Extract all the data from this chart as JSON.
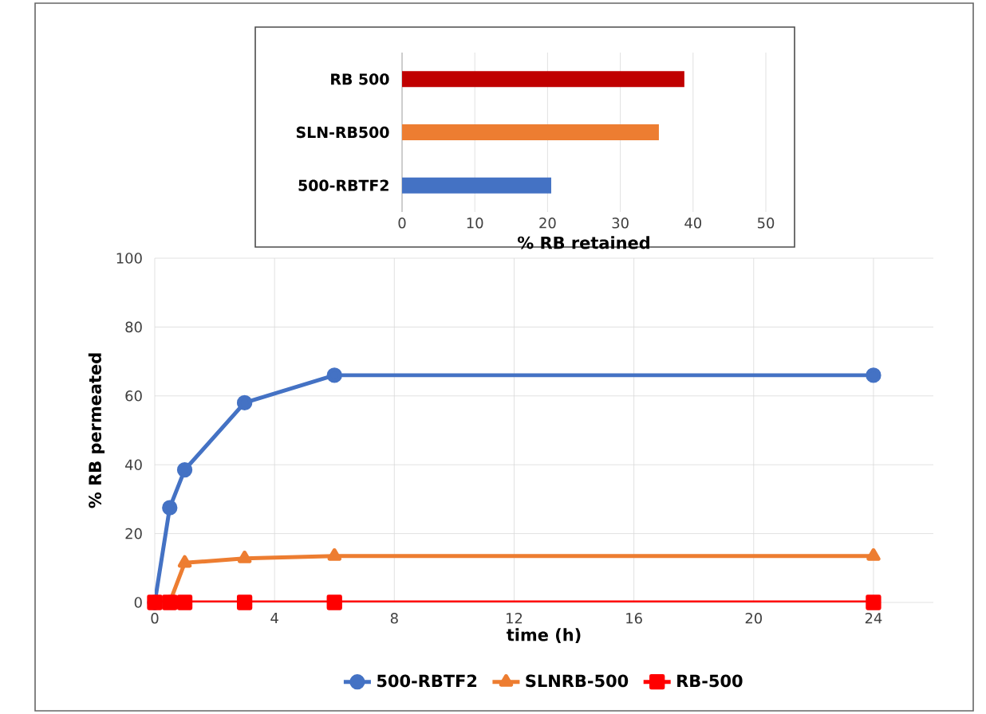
{
  "chart_data": [
    {
      "type": "bar",
      "orientation": "horizontal",
      "categories": [
        "RB 500",
        "SLN-RB500",
        "500-RBTF2"
      ],
      "values": [
        38.8,
        35.3,
        20.5
      ],
      "colors": [
        "#c00000",
        "#ed7d31",
        "#4472c4"
      ],
      "xlabel": "% RB retained",
      "xlim": [
        0,
        50
      ],
      "xticks": [
        0,
        10,
        20,
        30,
        40,
        50
      ],
      "grid": "x"
    },
    {
      "type": "line",
      "x": [
        0,
        0.5,
        1,
        3,
        6,
        24
      ],
      "xlabel": "time (h)",
      "ylabel": "% RB permeated",
      "xlim": [
        0,
        26
      ],
      "xticks": [
        0,
        4,
        8,
        12,
        16,
        20,
        24
      ],
      "ylim": [
        0,
        100
      ],
      "yticks": [
        0,
        20,
        40,
        60,
        80,
        100
      ],
      "grid": true,
      "legend": "bottom",
      "series": [
        {
          "name": "500-RBTF2",
          "color": "#4472c4",
          "marker": "circle",
          "values": [
            0,
            27.5,
            38.5,
            58,
            66,
            66
          ]
        },
        {
          "name": "SLNRB-500",
          "color": "#ed7d31",
          "marker": "triangle",
          "values": [
            0,
            0,
            11.5,
            12.8,
            13.5,
            13.5
          ]
        },
        {
          "name": "RB-500",
          "color": "#ff0000",
          "marker": "square",
          "values": [
            0,
            0,
            0,
            0,
            0,
            0
          ]
        }
      ]
    }
  ]
}
